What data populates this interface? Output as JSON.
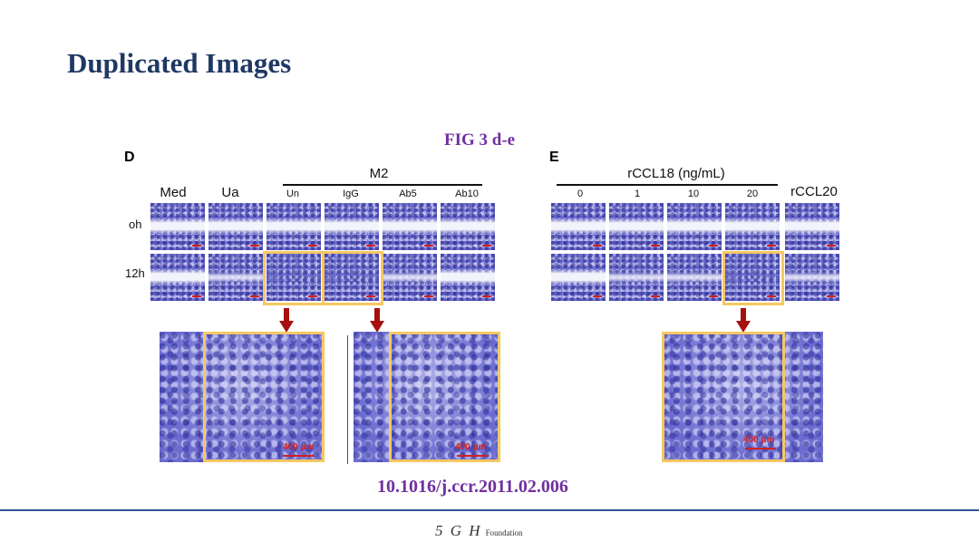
{
  "slide": {
    "title": "Duplicated Images",
    "figure_label": "FIG 3 d-e",
    "doi": "10.1016/j.ccr.2011.02.006"
  },
  "panel_d": {
    "letter": "D",
    "group_label": "M2",
    "columns": [
      "Med",
      "Ua",
      "Un",
      "IgG",
      "Ab5",
      "Ab10"
    ],
    "rows": [
      "oh",
      "12h"
    ]
  },
  "panel_e": {
    "letter": "E",
    "group_label": "rCCL18 (ng/mL)",
    "columns": [
      "0",
      "1",
      "10",
      "20"
    ],
    "extra_column": "rCCL20"
  },
  "zoom_scale_labels": [
    "400 μm",
    "400 μm",
    "400 μm"
  ],
  "footer": {
    "logo_mark": "5 G H",
    "logo_word": "Foundation"
  },
  "colors": {
    "title": "#1f3864",
    "accent_purple": "#7030a0",
    "highlight": "#f5c862",
    "arrow": "#a80f0f",
    "footer_line": "#2f5597"
  }
}
